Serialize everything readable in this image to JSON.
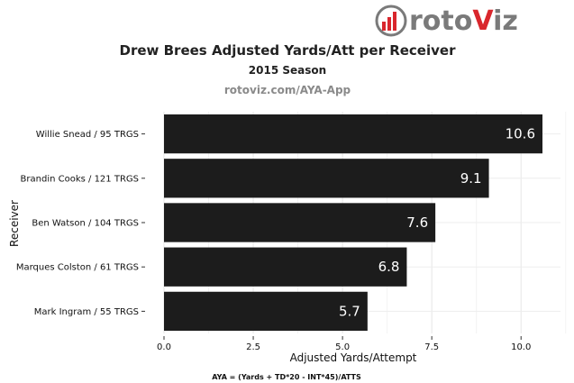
{
  "logo": {
    "prefix": "roto",
    "highlight": "V",
    "suffix": "iz",
    "colors": {
      "red": "#d9262c",
      "gray": "#7a7a7a"
    }
  },
  "chart_data": {
    "type": "bar",
    "orientation": "horizontal",
    "title": "Drew Brees Adjusted Yards/Att per Receiver",
    "subtitle": "2015 Season",
    "source": "rotoviz.com/AYA-App",
    "xlabel": "Adjusted Yards/Attempt",
    "ylabel": "Receiver",
    "xlim": [
      0,
      10.6
    ],
    "x_ticks": [
      "0.0",
      "2.5",
      "5.0",
      "7.5",
      "10.0"
    ],
    "x_tick_values": [
      0,
      2.5,
      5,
      7.5,
      10
    ],
    "grid": true,
    "categories": [
      "Willie Snead / 95 TRGS",
      "Brandin Cooks / 121 TRGS",
      "Ben Watson / 104 TRGS",
      "Marques Colston / 61 TRGS",
      "Mark Ingram / 55 TRGS"
    ],
    "values": [
      10.6,
      9.1,
      7.6,
      6.8,
      5.7
    ],
    "data_labels": [
      "10.6",
      "9.1",
      "7.6",
      "6.8",
      "5.7"
    ],
    "bar_color": "#1c1c1c",
    "footnote": "AYA = (Yards + TD*20 - INT*45)/ATTS"
  }
}
